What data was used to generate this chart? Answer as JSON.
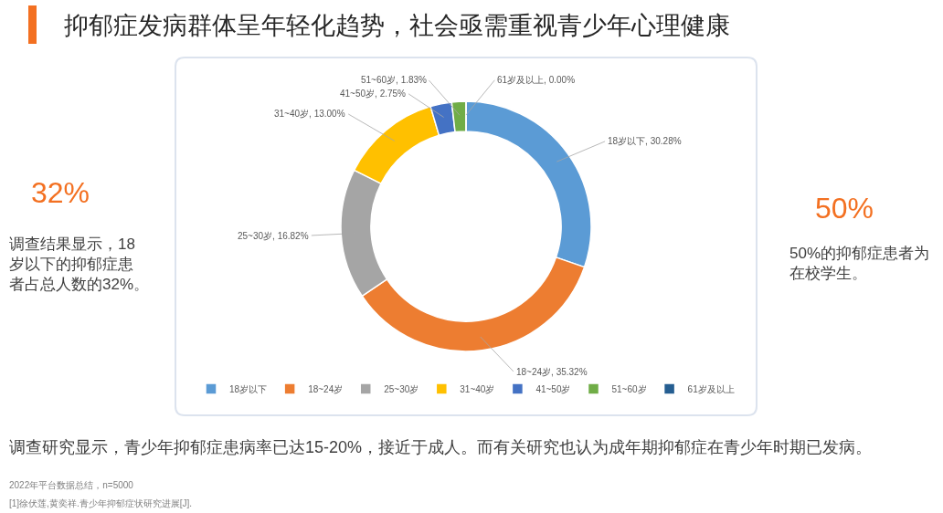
{
  "chart_data": {
    "type": "donut",
    "title": "抑郁症发病群体呈年轻化趋势，社会亟需重视青少年心理健康",
    "categories": [
      "18岁以下",
      "18~24岁",
      "25~30岁",
      "31~40岁",
      "41~50岁",
      "51~60岁",
      "61岁及以上"
    ],
    "values": [
      30.28,
      35.32,
      16.82,
      13.0,
      2.75,
      1.83,
      0.0
    ],
    "colors": [
      "#5b9bd5",
      "#ed7d31",
      "#a5a5a5",
      "#ffc000",
      "#4472c4",
      "#70ad47",
      "#255e91"
    ],
    "value_labels": [
      "18岁以下, 30.28%",
      "18~24岁, 35.32%",
      "25~30岁, 16.82%",
      "31~40岁, 13.00%",
      "41~50岁, 2.75%",
      "51~60岁, 1.83%",
      "61岁及以上, 0.00%"
    ],
    "legend": "bottom",
    "annotations": [
      "32%",
      "调查结果显示，18岁以下的抑郁症患者占总人数的32%。",
      "50%",
      "50%的抑郁症患者为在校学生。",
      "调查研究显示，青少年抑郁症患病率已达15-20%，接近于成人。而有关研究也认为成年期抑郁症在青少年时期已发病。",
      "2022年平台数据总结，n=5000",
      "[1]徐伏莲,黄奕祥.青少年抑郁症状研究进展[J]."
    ]
  }
}
